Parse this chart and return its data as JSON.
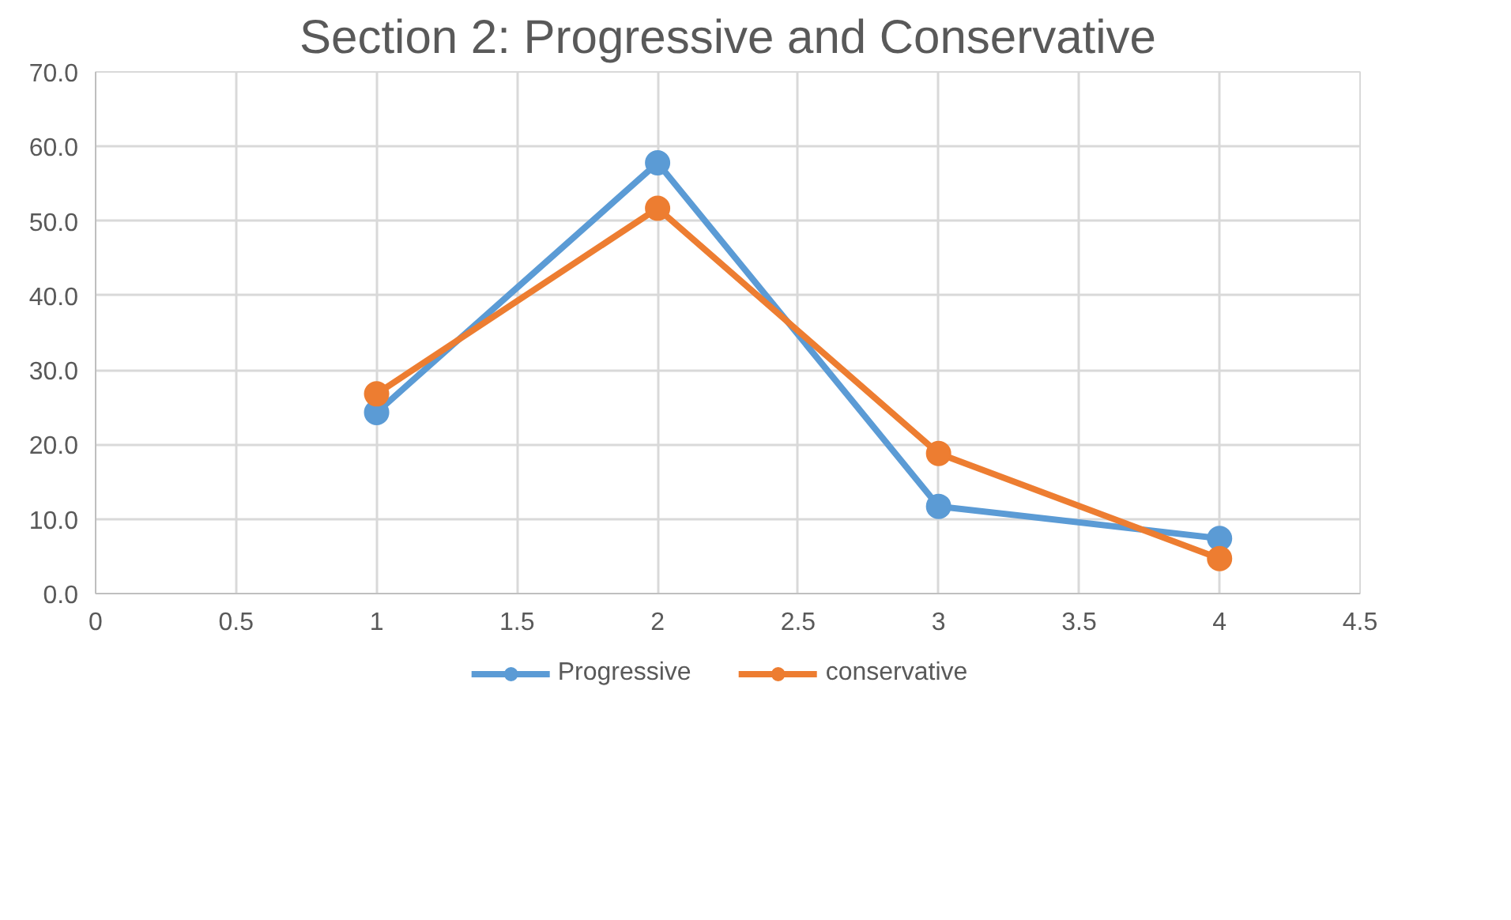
{
  "chart_data": {
    "type": "line",
    "title": "Section 2: Progressive and Conservative",
    "x": [
      1,
      2,
      3,
      4
    ],
    "series": [
      {
        "name": "Progressive",
        "color": "#5b9bd5",
        "values": [
          24.3,
          57.8,
          11.7,
          7.4
        ]
      },
      {
        "name": "conservative",
        "color": "#ed7d31",
        "values": [
          26.8,
          51.7,
          18.8,
          4.7
        ]
      }
    ],
    "xlim": [
      0,
      4.5
    ],
    "xticks": [
      0,
      0.5,
      1,
      1.5,
      2,
      2.5,
      3,
      3.5,
      4,
      4.5
    ],
    "ylim": [
      0,
      70
    ],
    "yticks": [
      {
        "value": 0,
        "label": "0.0"
      },
      {
        "value": 10,
        "label": "10.0"
      },
      {
        "value": 20,
        "label": "20.0"
      },
      {
        "value": 30,
        "label": "30.0"
      },
      {
        "value": 40,
        "label": "40.0"
      },
      {
        "value": 50,
        "label": "50.0"
      },
      {
        "value": 60,
        "label": "60.0"
      },
      {
        "value": 70,
        "label": "70.0"
      }
    ],
    "grid": true,
    "legend": "bottom",
    "marker": "circle",
    "line_style": "solid"
  }
}
